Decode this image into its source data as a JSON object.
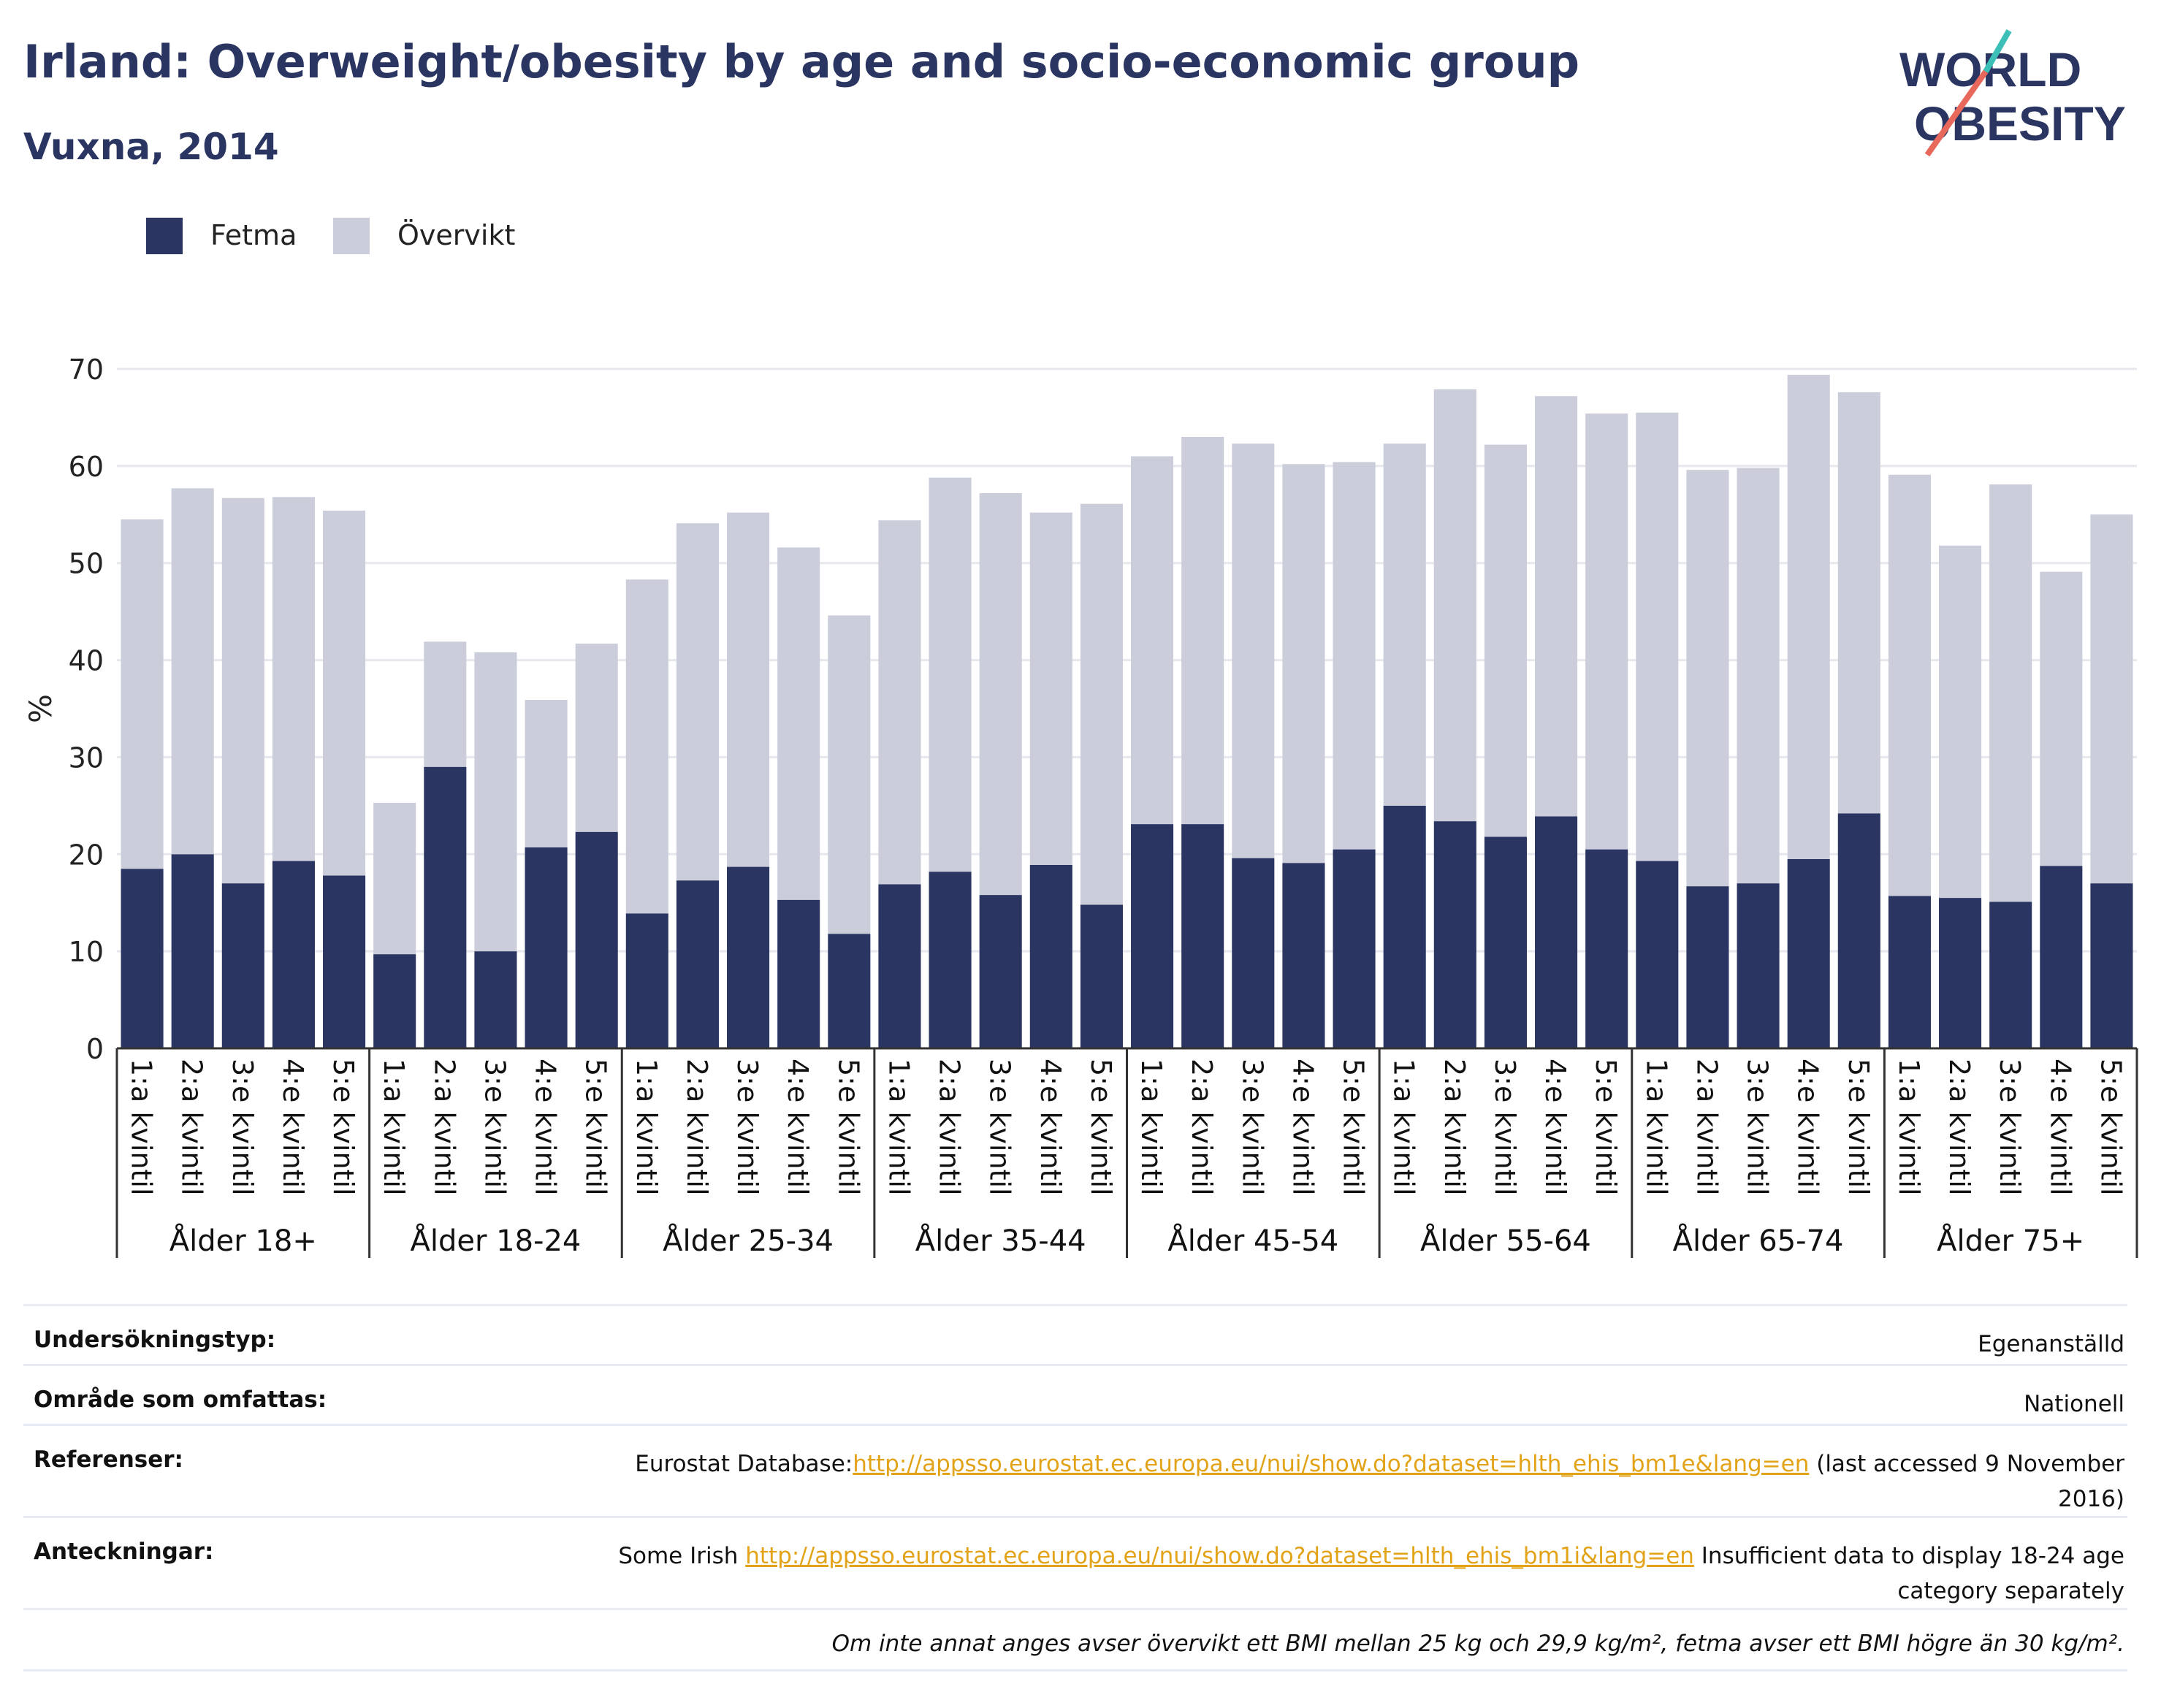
{
  "header": {
    "title": "Irland: Overweight/obesity by age and socio-economic group",
    "subtitle": "Vuxna, 2014",
    "logo_line1": "WORLD",
    "logo_line2": "OBESITY"
  },
  "colors": {
    "obesity": "#2a3562",
    "overweight": "#cbcdda",
    "text": "#2a3562",
    "link": "#e2a319",
    "logo_teal": "#3bbfb7",
    "logo_coral": "#e8695b"
  },
  "chart_data": {
    "type": "bar",
    "stacked": true,
    "ylabel": "%",
    "ylim": [
      0,
      70
    ],
    "yticks": [
      0,
      10,
      20,
      30,
      40,
      50,
      60,
      70
    ],
    "grid": true,
    "legend": {
      "position": "top-left"
    },
    "groups": [
      "Ålder 18+",
      "Ålder 18-24",
      "Ålder 25-34",
      "Ålder 35-44",
      "Ålder 45-54",
      "Ålder 55-64",
      "Ålder 65-74",
      "Ålder 75+"
    ],
    "categories": [
      "1:a kvintil",
      "2:a kvintil",
      "3:e kvintil",
      "4:e kvintil",
      "5:e kvintil"
    ],
    "series": [
      {
        "name": "Fetma",
        "values": [
          [
            18.5,
            20.0,
            17.0,
            19.3,
            17.8
          ],
          [
            9.7,
            29.0,
            10.0,
            20.7,
            22.3
          ],
          [
            13.9,
            17.3,
            18.7,
            15.3,
            11.8
          ],
          [
            16.9,
            18.2,
            15.8,
            18.9,
            14.8
          ],
          [
            23.1,
            23.1,
            19.6,
            19.1,
            20.5
          ],
          [
            25.0,
            23.4,
            21.8,
            23.9,
            20.5
          ],
          [
            19.3,
            16.7,
            17.0,
            19.5,
            24.2
          ],
          [
            15.7,
            15.5,
            15.1,
            18.8,
            17.0
          ]
        ]
      },
      {
        "name": "Övervikt",
        "values": [
          [
            36.0,
            37.7,
            39.7,
            37.5,
            37.6
          ],
          [
            15.6,
            12.9,
            30.8,
            15.2,
            19.4
          ],
          [
            34.4,
            36.8,
            36.5,
            36.3,
            32.8
          ],
          [
            37.5,
            40.6,
            41.4,
            36.3,
            41.3
          ],
          [
            37.9,
            39.9,
            42.7,
            41.1,
            39.9
          ],
          [
            37.3,
            44.5,
            40.4,
            43.3,
            44.9
          ],
          [
            46.2,
            42.9,
            42.8,
            49.9,
            43.4
          ],
          [
            43.4,
            36.3,
            43.0,
            30.3,
            38.0
          ]
        ]
      }
    ]
  },
  "info": {
    "survey_type": {
      "label": "Undersökningstyp:",
      "value": "Egenanställd"
    },
    "area": {
      "label": "Område som omfattas:",
      "value": "Nationell"
    },
    "references": {
      "label": "Referenser:",
      "prefix": "Eurostat Database:",
      "link": "http://appsso.eurostat.ec.europa.eu/nui/show.do?dataset=hlth_ehis_bm1e&lang=en",
      "suffix": " (last accessed 9 November",
      "line2": "2016)"
    },
    "notes": {
      "label": "Anteckningar:",
      "prefix": "Some Irish ",
      "link": "http://appsso.eurostat.ec.europa.eu/nui/show.do?dataset=hlth_ehis_bm1i&lang=en",
      "suffix": " Insufficient data to display 18-24 age",
      "line2": "category separately"
    },
    "footnote": "Om inte annat anges avser övervikt ett BMI mellan 25 kg och 29,9 kg/m², fetma avser ett BMI högre än 30 kg/m²."
  }
}
